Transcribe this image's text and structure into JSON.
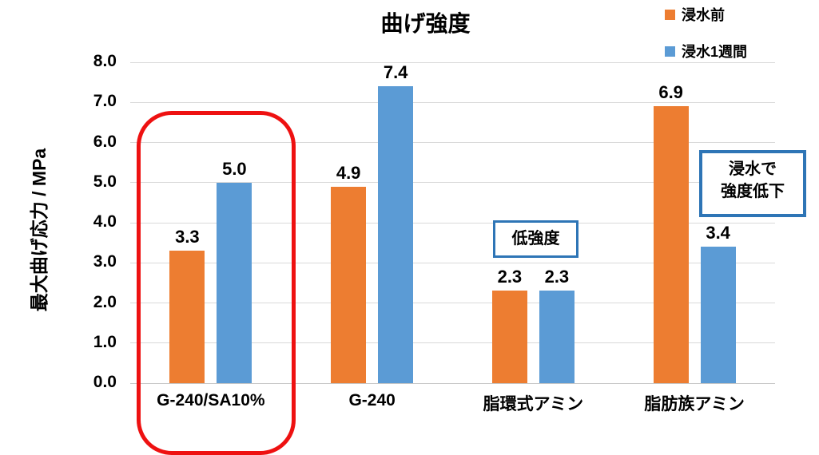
{
  "chart_data": {
    "type": "bar",
    "title": "曲げ強度",
    "xlabel": "",
    "ylabel": "最大曲げ応力 / MPa",
    "ylim": [
      0,
      8
    ],
    "ytick_step": 1,
    "yticks": [
      "0.0",
      "1.0",
      "2.0",
      "3.0",
      "4.0",
      "5.0",
      "6.0",
      "7.0",
      "8.0"
    ],
    "grid": true,
    "legend_position": "top-right",
    "categories": [
      "G-240/SA10%",
      "G-240",
      "脂環式アミン",
      "脂肪族アミン"
    ],
    "series": [
      {
        "name": "浸水前",
        "color": "#ED7D31",
        "values": [
          3.3,
          4.9,
          2.3,
          6.9
        ],
        "labels": [
          "3.3",
          "4.9",
          "2.3",
          "6.9"
        ]
      },
      {
        "name": "浸水1週間",
        "color": "#5B9BD5",
        "values": [
          5.0,
          7.4,
          2.3,
          3.4
        ],
        "labels": [
          "5.0",
          "7.4",
          "2.3",
          "3.4"
        ]
      }
    ],
    "annotations": {
      "highlight": {
        "shape": "red-rounded-box",
        "target_category": "G-240/SA10%",
        "color": "#EE1111"
      },
      "low_strength": {
        "text": "低強度",
        "target_category": "脂環式アミン",
        "border_color": "#2E75B6"
      },
      "immersion_drop": {
        "text": "浸水で強度低下",
        "lines": [
          "浸水で",
          "強度低下"
        ],
        "target_category": "脂肪族アミン",
        "border_color": "#2E75B6"
      }
    },
    "colors": {
      "grid": "#D9D9D9",
      "axis_line": "#C6C6C6",
      "text": "#000000",
      "background": "#FFFFFF"
    }
  }
}
